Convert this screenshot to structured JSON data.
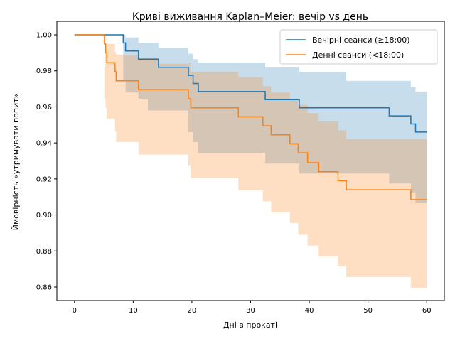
{
  "chart_data": {
    "type": "line",
    "title": "Криві виживання Kaplan–Meier: вечір vs день",
    "xlabel": "Дні в прокаті",
    "ylabel": "Ймовірність «утримувати попит»",
    "xlim": [
      -3,
      63
    ],
    "ylim": [
      0.8525,
      1.0075
    ],
    "xticks": [
      0,
      10,
      20,
      30,
      40,
      50,
      60
    ],
    "yticks": [
      0.86,
      0.88,
      0.9,
      0.92,
      0.94,
      0.96,
      0.98,
      1.0
    ],
    "ytick_labels": [
      "0.86",
      "0.88",
      "0.90",
      "0.92",
      "0.94",
      "0.96",
      "0.98",
      "1.00"
    ],
    "grid": false,
    "legend_position": "top-right",
    "series": [
      {
        "name": "Вечірні сеанси (≥18:00)",
        "color": "#1f77b4",
        "steps": [
          [
            0,
            1.0
          ],
          [
            8.3,
            0.9955
          ],
          [
            8.7,
            0.991
          ],
          [
            10.9,
            0.9865
          ],
          [
            14.3,
            0.982
          ],
          [
            19.4,
            0.9775
          ],
          [
            20.2,
            0.973
          ],
          [
            21.1,
            0.9685
          ],
          [
            32.5,
            0.964
          ],
          [
            38.3,
            0.9595
          ],
          [
            53.6,
            0.955
          ],
          [
            57.3,
            0.9505
          ],
          [
            58.1,
            0.946
          ],
          [
            60.0,
            0.946
          ]
        ],
        "ci_lower": [
          [
            0,
            1.0
          ],
          [
            8.3,
            0.975
          ],
          [
            8.7,
            0.968
          ],
          [
            10.9,
            0.9645
          ],
          [
            12.5,
            0.958
          ],
          [
            14.3,
            0.958
          ],
          [
            19.4,
            0.946
          ],
          [
            20.2,
            0.9405
          ],
          [
            21.1,
            0.9345
          ],
          [
            32.5,
            0.9285
          ],
          [
            38.3,
            0.923
          ],
          [
            53.6,
            0.9175
          ],
          [
            57.3,
            0.9125
          ],
          [
            58.1,
            0.9065
          ],
          [
            60.0,
            0.9065
          ]
        ],
        "ci_upper": [
          [
            0,
            1.0
          ],
          [
            8.3,
            1.0
          ],
          [
            8.7,
            0.9985
          ],
          [
            10.9,
            0.9955
          ],
          [
            14.3,
            0.9925
          ],
          [
            19.4,
            0.9895
          ],
          [
            20.2,
            0.9865
          ],
          [
            21.1,
            0.9845
          ],
          [
            32.5,
            0.982
          ],
          [
            38.3,
            0.9795
          ],
          [
            46.3,
            0.9745
          ],
          [
            53.6,
            0.9745
          ],
          [
            57.3,
            0.971
          ],
          [
            58.1,
            0.9685
          ],
          [
            60.0,
            0.9685
          ]
        ]
      },
      {
        "name": "Денні сеанси (<18:00)",
        "color": "#ff7f0e",
        "steps": [
          [
            0,
            1.0
          ],
          [
            5.1,
            0.995
          ],
          [
            5.3,
            0.99
          ],
          [
            5.5,
            0.9845
          ],
          [
            6.9,
            0.9795
          ],
          [
            7.1,
            0.9745
          ],
          [
            10.9,
            0.9695
          ],
          [
            19.4,
            0.9645
          ],
          [
            19.8,
            0.9595
          ],
          [
            27.9,
            0.9545
          ],
          [
            32.1,
            0.9495
          ],
          [
            33.5,
            0.9445
          ],
          [
            36.7,
            0.9395
          ],
          [
            38.1,
            0.9345
          ],
          [
            39.7,
            0.929
          ],
          [
            41.6,
            0.924
          ],
          [
            44.9,
            0.919
          ],
          [
            46.3,
            0.914
          ],
          [
            57.3,
            0.9085
          ],
          [
            60.0,
            0.9085
          ]
        ],
        "ci_lower": [
          [
            0,
            1.0
          ],
          [
            5.1,
            0.9645
          ],
          [
            5.3,
            0.9595
          ],
          [
            5.5,
            0.9535
          ],
          [
            6.9,
            0.9465
          ],
          [
            7.1,
            0.9405
          ],
          [
            10.9,
            0.9335
          ],
          [
            19.4,
            0.9275
          ],
          [
            19.8,
            0.9205
          ],
          [
            27.9,
            0.914
          ],
          [
            32.1,
            0.9075
          ],
          [
            33.5,
            0.9015
          ],
          [
            36.7,
            0.8955
          ],
          [
            38.1,
            0.889
          ],
          [
            39.7,
            0.883
          ],
          [
            41.6,
            0.877
          ],
          [
            44.9,
            0.8715
          ],
          [
            46.3,
            0.8655
          ],
          [
            57.3,
            0.8595
          ],
          [
            60.0,
            0.8595
          ]
        ],
        "ci_upper": [
          [
            0,
            1.0
          ],
          [
            5.1,
            1.0
          ],
          [
            5.3,
            0.995
          ],
          [
            6.9,
            0.9905
          ],
          [
            7.1,
            0.989
          ],
          [
            10.9,
            0.987
          ],
          [
            12.5,
            0.987
          ],
          [
            14.3,
            0.984
          ],
          [
            19.4,
            0.984
          ],
          [
            19.8,
            0.9795
          ],
          [
            27.9,
            0.9765
          ],
          [
            32.1,
            0.9715
          ],
          [
            33.5,
            0.968
          ],
          [
            36.7,
            0.9645
          ],
          [
            38.1,
            0.961
          ],
          [
            39.7,
            0.9565
          ],
          [
            41.6,
            0.952
          ],
          [
            44.9,
            0.947
          ],
          [
            46.3,
            0.942
          ],
          [
            57.3,
            0.942
          ],
          [
            60.0,
            0.942
          ]
        ]
      }
    ]
  }
}
